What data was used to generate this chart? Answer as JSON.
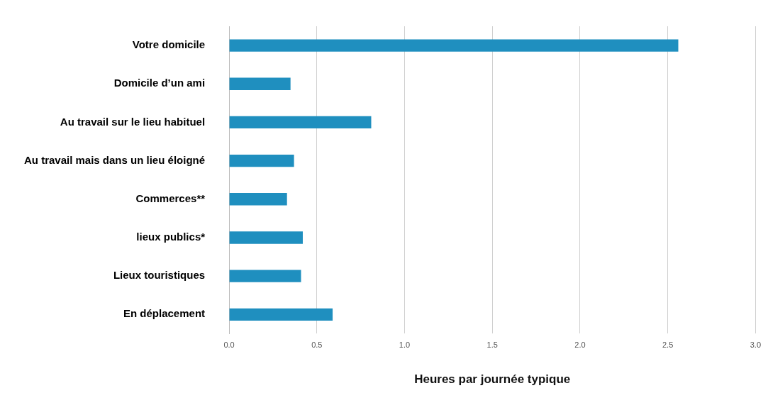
{
  "chart_data": {
    "type": "bar",
    "orientation": "horizontal",
    "xlabel": "Heures par journée typique",
    "categories": [
      "Votre domicile",
      "Domicile d’un ami",
      "Au travail sur le lieu habituel",
      "Au travail mais dans un lieu éloigné",
      "Commerces**",
      "lieux publics*",
      "Lieux touristiques",
      "En déplacement"
    ],
    "values": [
      2.56,
      0.35,
      0.81,
      0.37,
      0.33,
      0.42,
      0.41,
      0.59
    ],
    "color": "#1f8fbf",
    "xlim": [
      0,
      3
    ],
    "xticks": [
      {
        "value": 0,
        "label": "0.0"
      },
      {
        "value": 0.5,
        "label": "0.5"
      },
      {
        "value": 1,
        "label": "1.0"
      },
      {
        "value": 1.5,
        "label": "1.5"
      },
      {
        "value": 2,
        "label": "2.0"
      },
      {
        "value": 2.5,
        "label": "2.5"
      },
      {
        "value": 3,
        "label": "3.0"
      }
    ],
    "grid": "x",
    "legend": false
  }
}
